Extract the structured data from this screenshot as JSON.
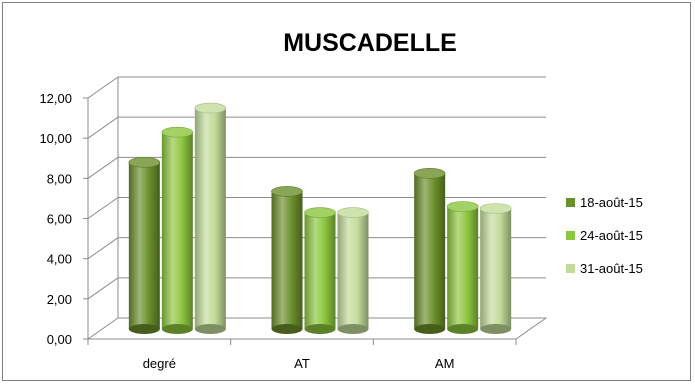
{
  "chart_data": {
    "type": "bar",
    "title": "MUSCADELLE",
    "categories": [
      "degré",
      "AT",
      "AM"
    ],
    "series": [
      {
        "name": "18-août-15",
        "values": [
          8.3,
          6.85,
          7.75
        ],
        "color": "#6b8f2b"
      },
      {
        "name": "24-août-15",
        "values": [
          9.8,
          5.8,
          6.1
        ],
        "color": "#8dc63f"
      },
      {
        "name": "31-août-15",
        "values": [
          11.0,
          5.8,
          6.0
        ],
        "color": "#c2dc9a"
      }
    ],
    "ylim": [
      0,
      12
    ],
    "yticks": [
      "0,00",
      "2,00",
      "4,00",
      "6,00",
      "8,00",
      "10,00",
      "12,00"
    ],
    "xlabel": "",
    "ylabel": "",
    "grid": true,
    "legend": "right",
    "style": "3d-cylinder"
  }
}
